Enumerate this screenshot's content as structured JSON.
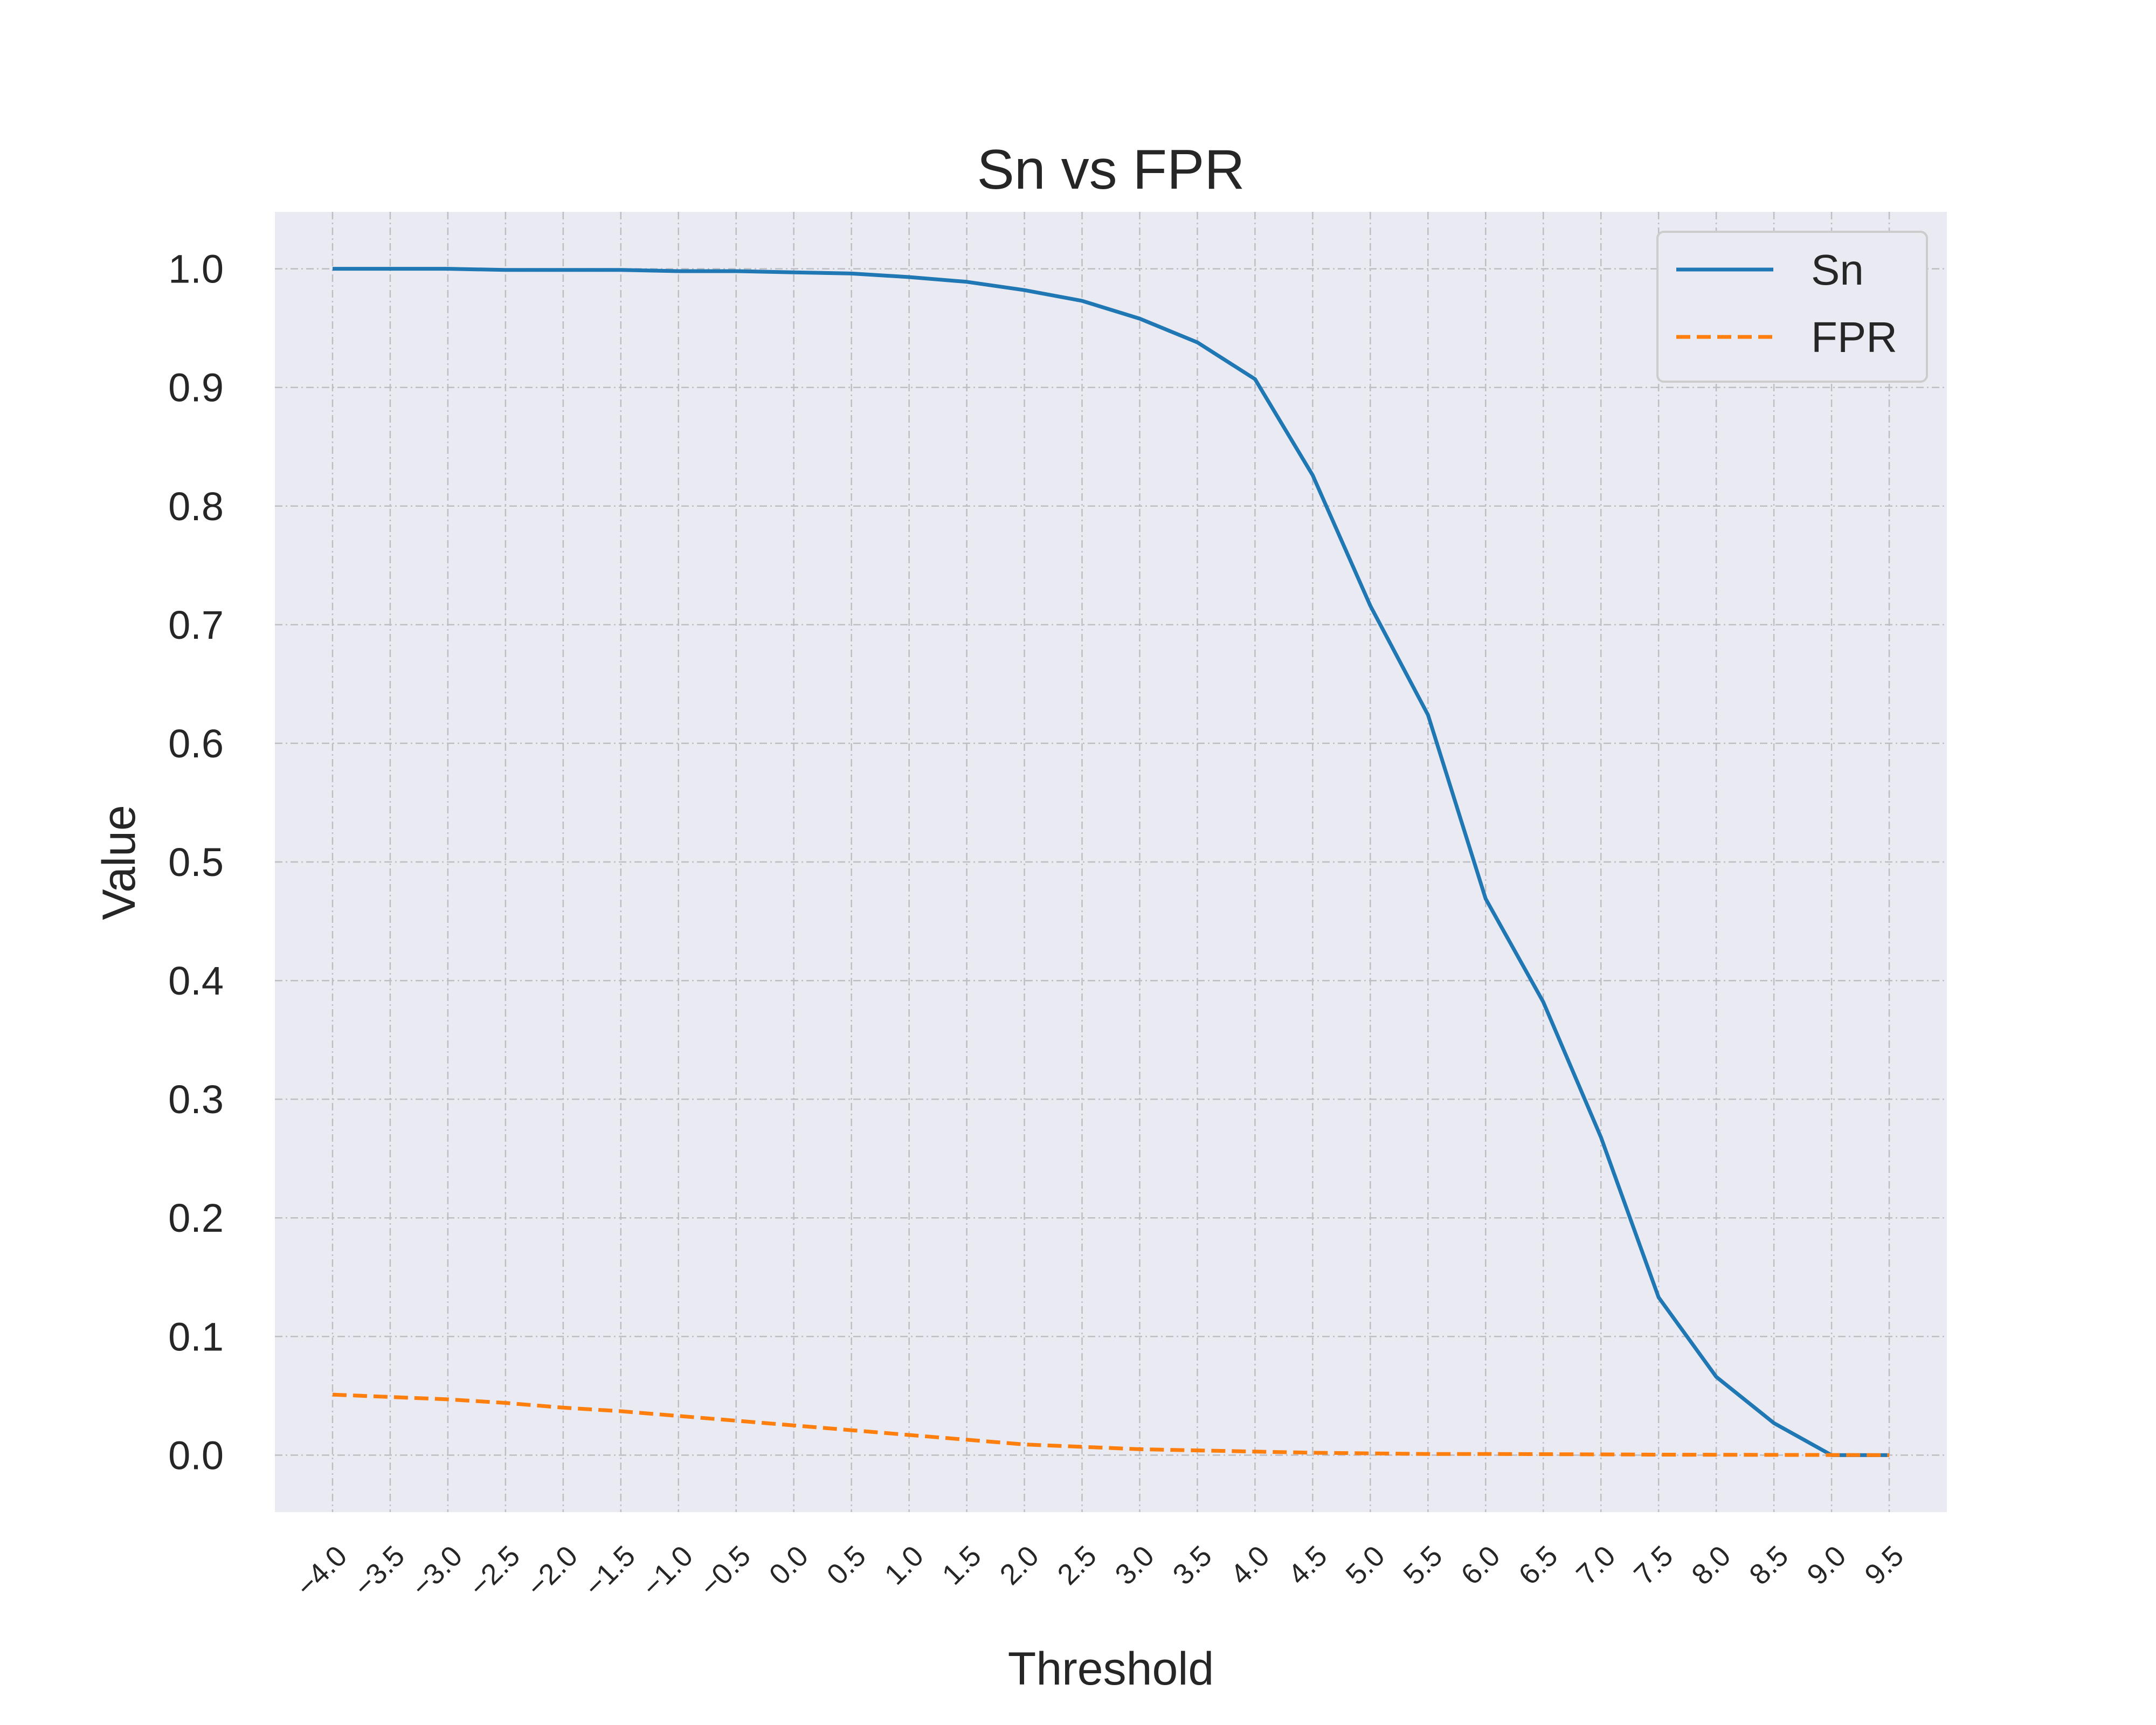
{
  "chart_data": {
    "type": "line",
    "title": "Sn vs FPR",
    "xlabel": "Threshold",
    "ylabel": "Value",
    "xlim": [
      -4.5,
      10.0
    ],
    "ylim": [
      -0.048,
      1.048
    ],
    "x_ticks": [
      -4.0,
      -3.5,
      -3.0,
      -2.5,
      -2.0,
      -1.5,
      -1.0,
      -0.5,
      0.0,
      0.5,
      1.0,
      1.5,
      2.0,
      2.5,
      3.0,
      3.5,
      4.0,
      4.5,
      5.0,
      5.5,
      6.0,
      6.5,
      7.0,
      7.5,
      8.0,
      8.5,
      9.0,
      9.5
    ],
    "x_tick_labels": [
      "−4.0",
      "−3.5",
      "−3.0",
      "−2.5",
      "−2.0",
      "−1.5",
      "−1.0",
      "−0.5",
      "0.0",
      "0.5",
      "1.0",
      "1.5",
      "2.0",
      "2.5",
      "3.0",
      "3.5",
      "4.0",
      "4.5",
      "5.0",
      "5.5",
      "6.0",
      "6.5",
      "7.0",
      "7.5",
      "8.0",
      "8.5",
      "9.0",
      "9.5"
    ],
    "y_ticks": [
      0.0,
      0.1,
      0.2,
      0.3,
      0.4,
      0.5,
      0.6,
      0.7,
      0.8,
      0.9,
      1.0
    ],
    "y_tick_labels": [
      "0.0",
      "0.1",
      "0.2",
      "0.3",
      "0.4",
      "0.5",
      "0.6",
      "0.7",
      "0.8",
      "0.9",
      "1.0"
    ],
    "grid": true,
    "legend_position": "top-right",
    "x": [
      -4.0,
      -3.5,
      -3.0,
      -2.5,
      -2.0,
      -1.5,
      -1.0,
      -0.5,
      0.0,
      0.5,
      1.0,
      1.5,
      2.0,
      2.5,
      3.0,
      3.5,
      4.0,
      4.5,
      5.0,
      5.5,
      6.0,
      6.5,
      7.0,
      7.5,
      8.0,
      8.5,
      9.0,
      9.5
    ],
    "series": [
      {
        "name": "Sn",
        "color": "#1f77b4",
        "style": "solid",
        "values": [
          1.0,
          1.0,
          1.0,
          0.999,
          0.999,
          0.999,
          0.998,
          0.998,
          0.997,
          0.996,
          0.993,
          0.989,
          0.982,
          0.973,
          0.958,
          0.938,
          0.907,
          0.826,
          0.716,
          0.624,
          0.469,
          0.382,
          0.268,
          0.133,
          0.066,
          0.027,
          0.0,
          0.0
        ]
      },
      {
        "name": "FPR",
        "color": "#ff7f0e",
        "style": "dashed",
        "values": [
          0.051,
          0.049,
          0.047,
          0.044,
          0.04,
          0.037,
          0.033,
          0.029,
          0.025,
          0.021,
          0.017,
          0.013,
          0.009,
          0.007,
          0.005,
          0.004,
          0.003,
          0.002,
          0.0015,
          0.001,
          0.001,
          0.0008,
          0.0006,
          0.0004,
          0.0003,
          0.0002,
          0.0001,
          0.0
        ]
      }
    ]
  }
}
